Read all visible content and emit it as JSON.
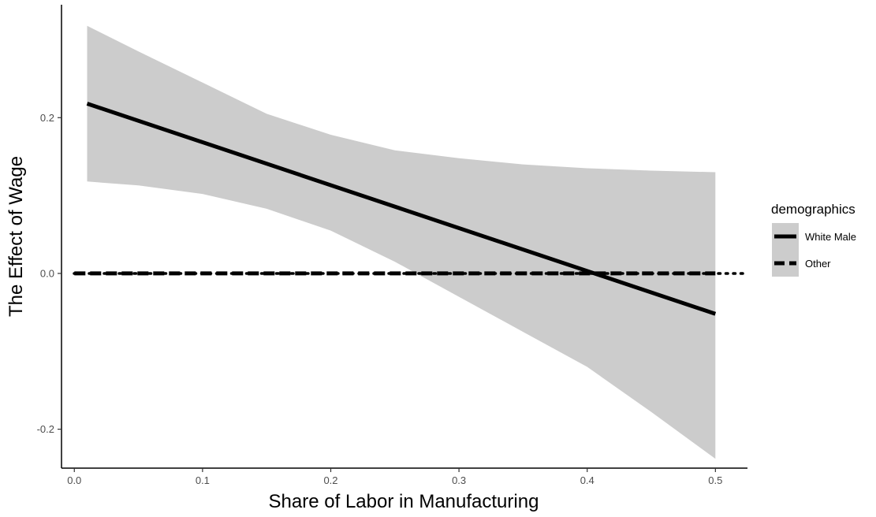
{
  "chart_data": {
    "type": "line",
    "xlabel": "Share of Labor in Manufacturing",
    "ylabel": "The Effect of Wage",
    "xlim": [
      -0.01,
      0.525
    ],
    "ylim": [
      -0.25,
      0.345
    ],
    "xticks": [
      0.0,
      0.1,
      0.2,
      0.3,
      0.4,
      0.5
    ],
    "xtick_labels": [
      "0.0",
      "0.1",
      "0.2",
      "0.3",
      "0.4",
      "0.5"
    ],
    "yticks": [
      -0.2,
      0.0,
      0.2
    ],
    "ytick_labels": [
      "-0.2",
      "0.0",
      "0.2"
    ],
    "reference_line": {
      "y": 0.0,
      "style": "dotted"
    },
    "legend": {
      "title": "demographics",
      "placement": "right",
      "entries": [
        {
          "label": "White Male",
          "style": "solid"
        },
        {
          "label": "Other",
          "style": "dashed"
        }
      ]
    },
    "series": [
      {
        "name": "White Male",
        "style": "solid",
        "x": [
          0.01,
          0.5
        ],
        "y": [
          0.218,
          -0.052
        ],
        "ribbon": {
          "x": [
            0.01,
            0.05,
            0.1,
            0.15,
            0.2,
            0.25,
            0.3,
            0.35,
            0.4,
            0.45,
            0.5
          ],
          "upper": [
            0.318,
            0.285,
            0.245,
            0.205,
            0.178,
            0.158,
            0.148,
            0.14,
            0.135,
            0.132,
            0.13
          ],
          "lower": [
            0.118,
            0.113,
            0.102,
            0.083,
            0.055,
            0.015,
            -0.03,
            -0.075,
            -0.12,
            -0.178,
            -0.238
          ]
        }
      },
      {
        "name": "Other",
        "style": "dashed",
        "x": [
          0.0,
          0.5
        ],
        "y": [
          0.0,
          0.0
        ]
      }
    ]
  }
}
